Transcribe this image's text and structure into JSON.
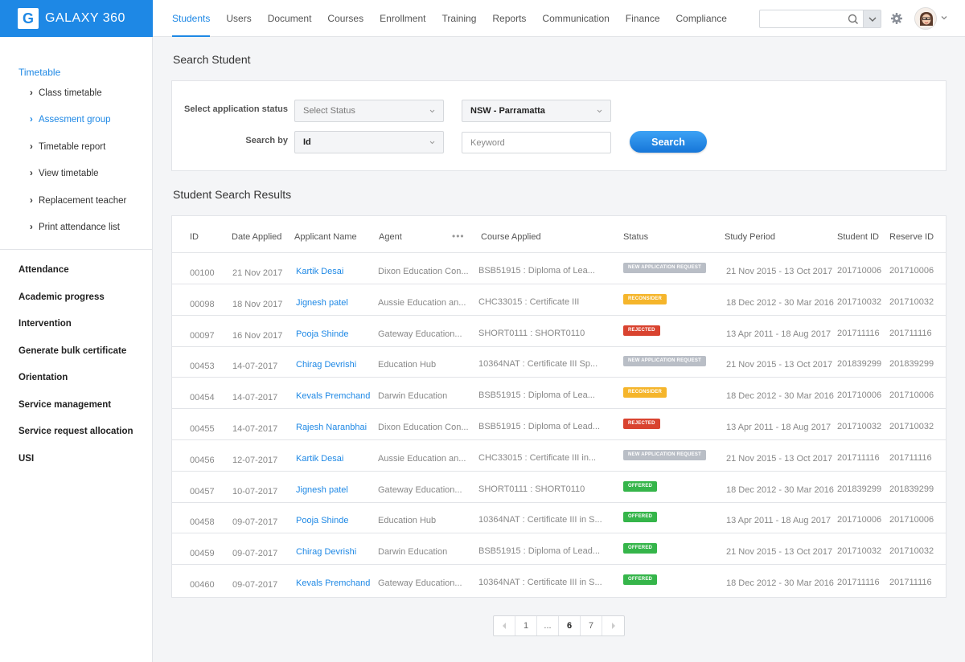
{
  "app": {
    "logo_letter": "G",
    "name": "GALAXY 360"
  },
  "nav": [
    "Students",
    "Users",
    "Document",
    "Courses",
    "Enrollment",
    "Training",
    "Reports",
    "Communication",
    "Finance",
    "Compliance"
  ],
  "nav_active": "Students",
  "header_search": {
    "placeholder": ""
  },
  "sidebar": {
    "section": "Timetable",
    "sub_items": [
      "Class timetable",
      "Assesment group",
      "Timetable report",
      "View timetable",
      "Replacement teacher",
      "Print attendance list"
    ],
    "active_sub": "Assesment group",
    "main_items": [
      "Attendance",
      "Academic progress",
      "Intervention",
      "Generate bulk certificate",
      "Orientation",
      "Service management",
      "Service request allocation",
      "USI"
    ]
  },
  "search": {
    "title": "Search Student",
    "status_label": "Select application status",
    "status_value": "Select Status",
    "campus_value": "NSW - Parramatta",
    "searchby_label": "Search by",
    "searchby_value": "Id",
    "keyword_placeholder": "Keyword",
    "button": "Search"
  },
  "results": {
    "title": "Student Search Results",
    "columns": [
      "ID",
      "Date Applied",
      "Applicant Name",
      "Agent",
      "Course Applied",
      "Status",
      "Study Period",
      "Student ID",
      "Reserve ID"
    ],
    "rows": [
      [
        "00100",
        "21 Nov 2017",
        "Kartik Desai",
        "Dixon Education Con...",
        "BSB51915 : Diploma of Lea...",
        "New application request",
        "21 Nov 2015 - 13 Oct 2017",
        "201710006",
        "201710006"
      ],
      [
        "00098",
        "18 Nov 2017",
        "Jignesh patel",
        "Aussie Education an...",
        "CHC33015 : Certificate III",
        "Reconsider",
        "18 Dec 2012 - 30 Mar 2016",
        "201710032",
        "201710032"
      ],
      [
        "00097",
        "16 Nov 2017",
        "Pooja Shinde",
        "Gateway Education...",
        "SHORT0111 : SHORT0110",
        "Rejected",
        "13 Apr 2011 - 18 Aug 2017",
        "201711116",
        "201711116"
      ],
      [
        "00453",
        "14-07-2017",
        "Chirag Devrishi",
        "Education Hub",
        "10364NAT : Certificate III  Sp...",
        "New application request",
        "21 Nov 2015 - 13 Oct 2017",
        "201839299",
        "201839299"
      ],
      [
        "00454",
        "14-07-2017",
        "Kevals Premchand",
        "Darwin Education",
        "BSB51915 : Diploma of Lea...",
        "Reconsider",
        "18 Dec 2012 - 30 Mar 2016",
        "201710006",
        "201710006"
      ],
      [
        "00455",
        "14-07-2017",
        "Rajesh Naranbhai",
        "Dixon Education Con...",
        "BSB51915 : Diploma of Lead...",
        "Rejected",
        "13 Apr 2011 - 18 Aug 2017",
        "201710032",
        "201710032"
      ],
      [
        "00456",
        "12-07-2017",
        "Kartik Desai",
        "Aussie Education an...",
        "CHC33015 : Certificate III in...",
        "New application request",
        "21 Nov 2015 - 13 Oct 2017",
        "201711116",
        "201711116"
      ],
      [
        "00457",
        "10-07-2017",
        "Jignesh patel",
        "Gateway Education...",
        "SHORT0111 : SHORT0110",
        "Offered",
        "18 Dec 2012 - 30 Mar 2016",
        "201839299",
        "201839299"
      ],
      [
        "00458",
        "09-07-2017",
        "Pooja Shinde",
        "Education Hub",
        "10364NAT : Certificate III in S...",
        "Offered",
        "13 Apr 2011 - 18 Aug 2017",
        "201710006",
        "201710006"
      ],
      [
        "00459",
        "09-07-2017",
        "Chirag Devrishi",
        "Darwin Education",
        "BSB51915 : Diploma of Lead...",
        "Offered",
        "21 Nov 2015 - 13 Oct 2017",
        "201710032",
        "201710032"
      ],
      [
        "00460",
        "09-07-2017",
        "Kevals Premchand",
        "Gateway Education...",
        "10364NAT : Certificate III in S...",
        "Offered",
        "18 Dec 2012 - 30 Mar 2016",
        "201711116",
        "201711116"
      ]
    ]
  },
  "status_colors": {
    "New application request": "#b9bec6",
    "Reconsider": "#f5b52b",
    "Rejected": "#d9432f",
    "Offered": "#35b54a"
  },
  "pagination": [
    "1",
    "...",
    "6",
    "7"
  ],
  "pagination_active": "6",
  "accent_color": "#1e88e5"
}
